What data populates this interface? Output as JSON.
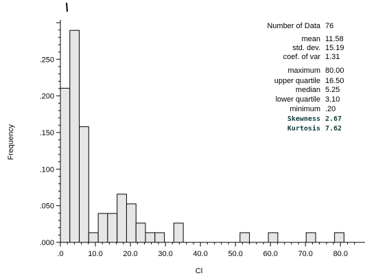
{
  "chart_data": {
    "type": "bar",
    "histogram": true,
    "xlabel": "Cl",
    "ylabel": "Frequency",
    "xlim": [
      0,
      87
    ],
    "ylim": [
      0,
      0.3
    ],
    "x_ticks": [
      0,
      10,
      20,
      30,
      40,
      50,
      60,
      70,
      80
    ],
    "x_tick_labels": [
      ".0",
      "10.0",
      "20.0",
      "30.0",
      "40.0",
      "50.0",
      "60.0",
      "70.0",
      "80.0"
    ],
    "y_ticks": [
      0,
      0.05,
      0.1,
      0.15,
      0.2,
      0.25
    ],
    "y_tick_labels": [
      ".000",
      ".050",
      ".100",
      ".150",
      ".200",
      ".250"
    ],
    "bin_width": 2.7,
    "bins": [
      {
        "start": 0.0,
        "value": 0.2105
      },
      {
        "start": 2.7,
        "value": 0.2895
      },
      {
        "start": 5.4,
        "value": 0.1579
      },
      {
        "start": 8.1,
        "value": 0.0132
      },
      {
        "start": 10.8,
        "value": 0.0395
      },
      {
        "start": 13.5,
        "value": 0.0395
      },
      {
        "start": 16.2,
        "value": 0.0658
      },
      {
        "start": 18.9,
        "value": 0.0526
      },
      {
        "start": 21.6,
        "value": 0.0263
      },
      {
        "start": 24.3,
        "value": 0.0132
      },
      {
        "start": 27.0,
        "value": 0.0132
      },
      {
        "start": 32.4,
        "value": 0.0263
      },
      {
        "start": 51.3,
        "value": 0.0132
      },
      {
        "start": 59.4,
        "value": 0.0132
      },
      {
        "start": 70.2,
        "value": 0.0132
      },
      {
        "start": 78.3,
        "value": 0.0132
      }
    ],
    "grid": false,
    "bar_fill": "#e6e6e6",
    "bar_stroke": "#000000",
    "statistics": [
      {
        "label": "Number of Data",
        "value": "76"
      },
      {
        "label": "mean",
        "value": "11.58"
      },
      {
        "label": "std. dev.",
        "value": "15.19"
      },
      {
        "label": "coef. of var",
        "value": "1.31"
      },
      {
        "label": "maximum",
        "value": "80.00"
      },
      {
        "label": "upper quartile",
        "value": "16.50"
      },
      {
        "label": "median",
        "value": "5.25"
      },
      {
        "label": "lower quartile",
        "value": "3.10"
      },
      {
        "label": "minimum",
        "value": ".20"
      },
      {
        "label": "Skewness",
        "value": "2.67",
        "emphasis": true
      },
      {
        "label": "Kurtosis",
        "value": "7.62",
        "emphasis": true
      }
    ]
  }
}
